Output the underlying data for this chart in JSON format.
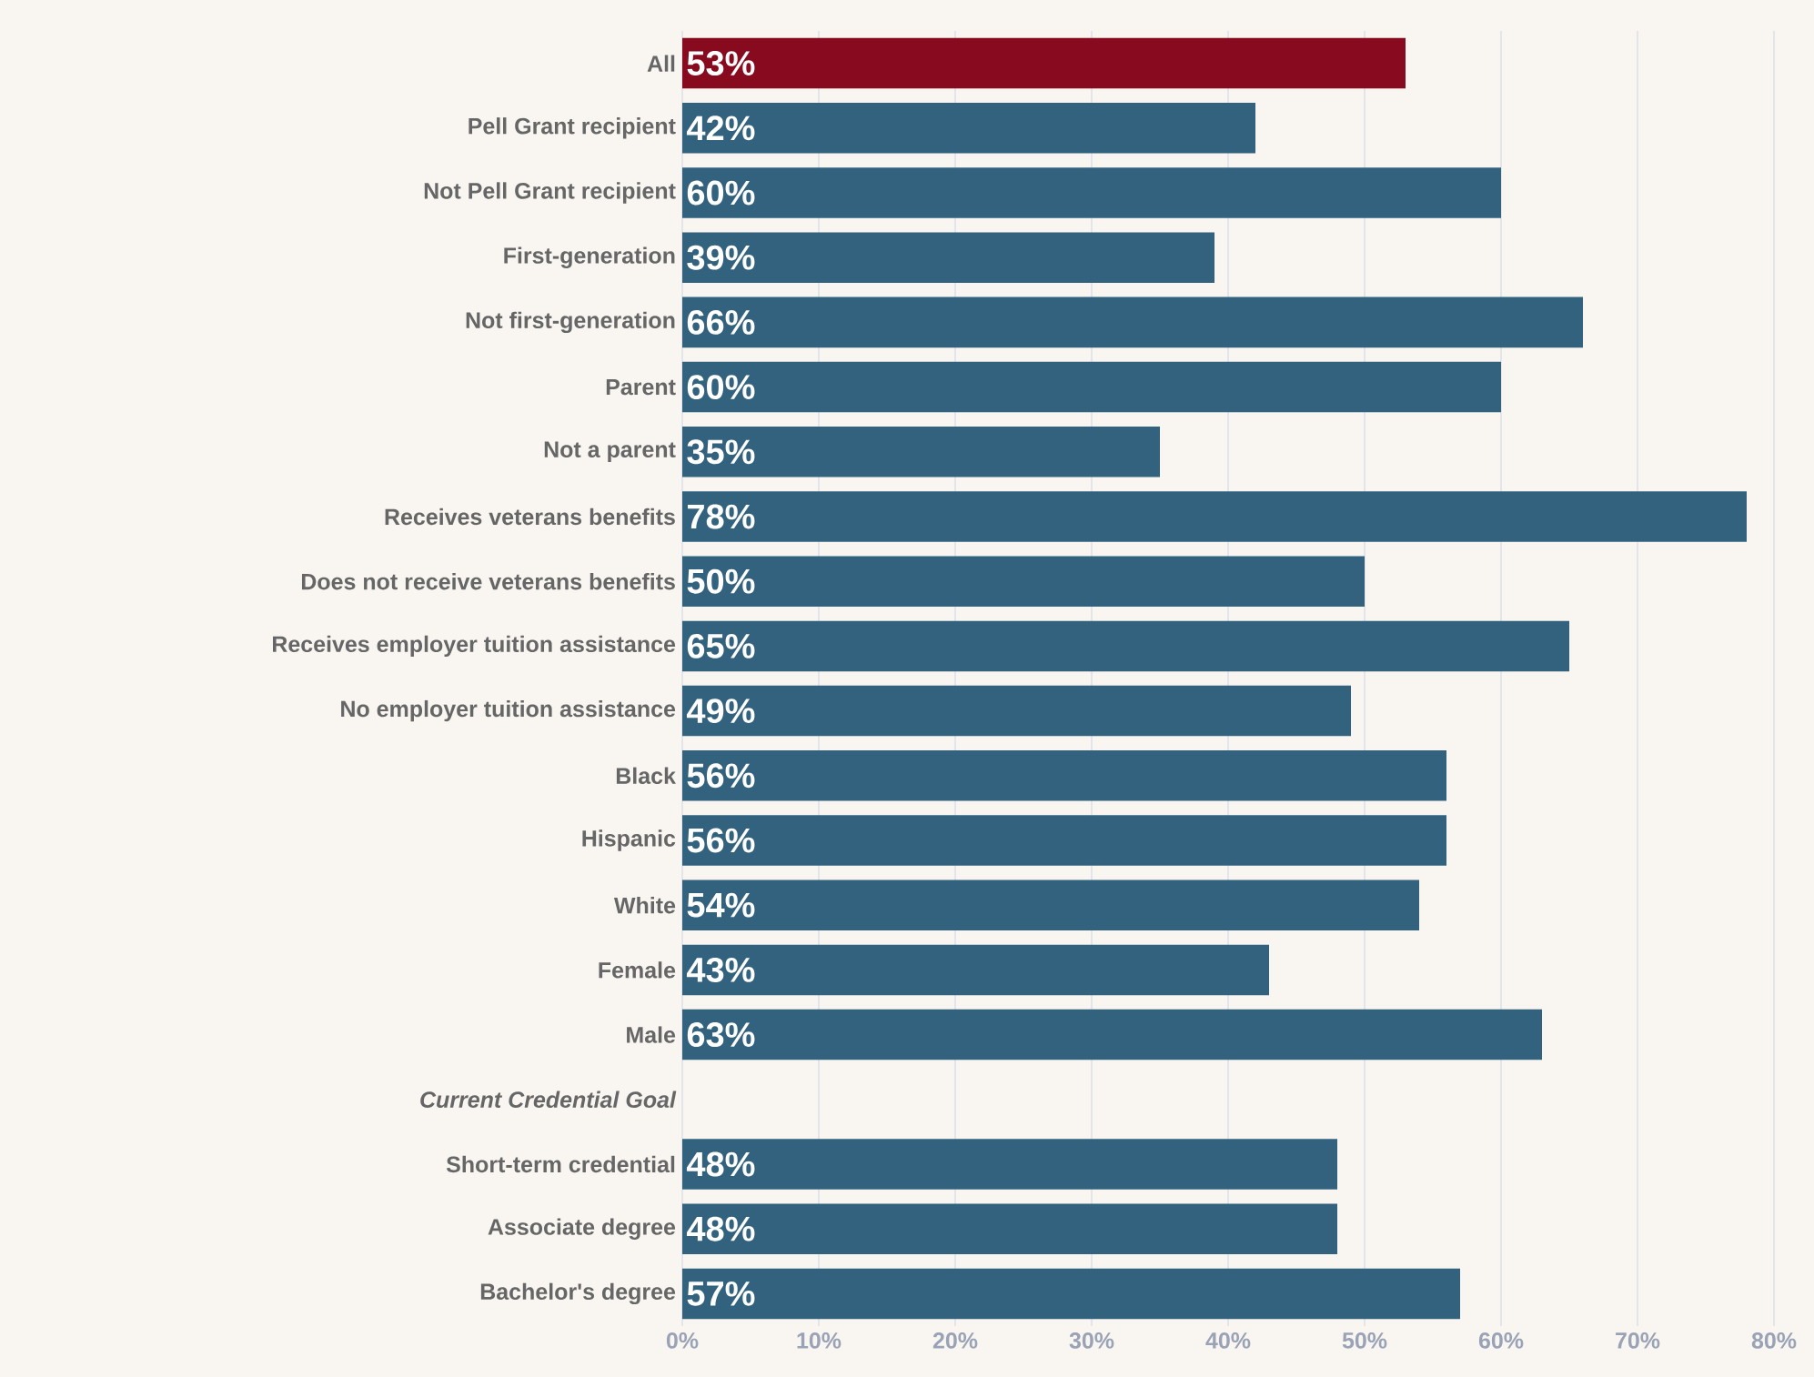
{
  "chart_data": {
    "type": "bar",
    "orientation": "horizontal",
    "categories": [
      "All",
      "Pell Grant recipient",
      "Not Pell Grant recipient",
      "First-generation",
      "Not first-generation",
      "Parent",
      "Not a parent",
      "Receives veterans benefits",
      "Does not receive veterans benefits",
      "Receives employer tuition assistance",
      "No employer tuition assistance",
      "Black",
      "Hispanic",
      "White",
      "Female",
      "Male",
      "Current Credential Goal",
      "Short-term credential",
      "Associate degree",
      "Bachelor's degree"
    ],
    "values": [
      53,
      42,
      60,
      39,
      66,
      60,
      35,
      78,
      50,
      65,
      49,
      56,
      56,
      54,
      43,
      63,
      null,
      48,
      48,
      57
    ],
    "value_labels": [
      "53%",
      "42%",
      "60%",
      "39%",
      "66%",
      "60%",
      "35%",
      "78%",
      "50%",
      "65%",
      "49%",
      "56%",
      "56%",
      "54%",
      "43%",
      "63%",
      null,
      "48%",
      "48%",
      "57%"
    ],
    "colors": [
      "#880a1e",
      "#33627f",
      "#33627f",
      "#33627f",
      "#33627f",
      "#33627f",
      "#33627f",
      "#33627f",
      "#33627f",
      "#33627f",
      "#33627f",
      "#33627f",
      "#33627f",
      "#33627f",
      "#33627f",
      "#33627f",
      "#33627f",
      "#33627f",
      "#33627f",
      "#33627f"
    ],
    "xlim": [
      0,
      80
    ],
    "xticks": [
      {
        "value": 0,
        "label": "0%"
      },
      {
        "value": 10,
        "label": "10%"
      },
      {
        "value": 20,
        "label": "20%"
      },
      {
        "value": 30,
        "label": "30%"
      },
      {
        "value": 40,
        "label": "40%"
      },
      {
        "value": 50,
        "label": "50%"
      },
      {
        "value": 60,
        "label": "60%"
      },
      {
        "value": 70,
        "label": "70%"
      },
      {
        "value": 80,
        "label": "80%"
      }
    ],
    "grid": "x"
  }
}
